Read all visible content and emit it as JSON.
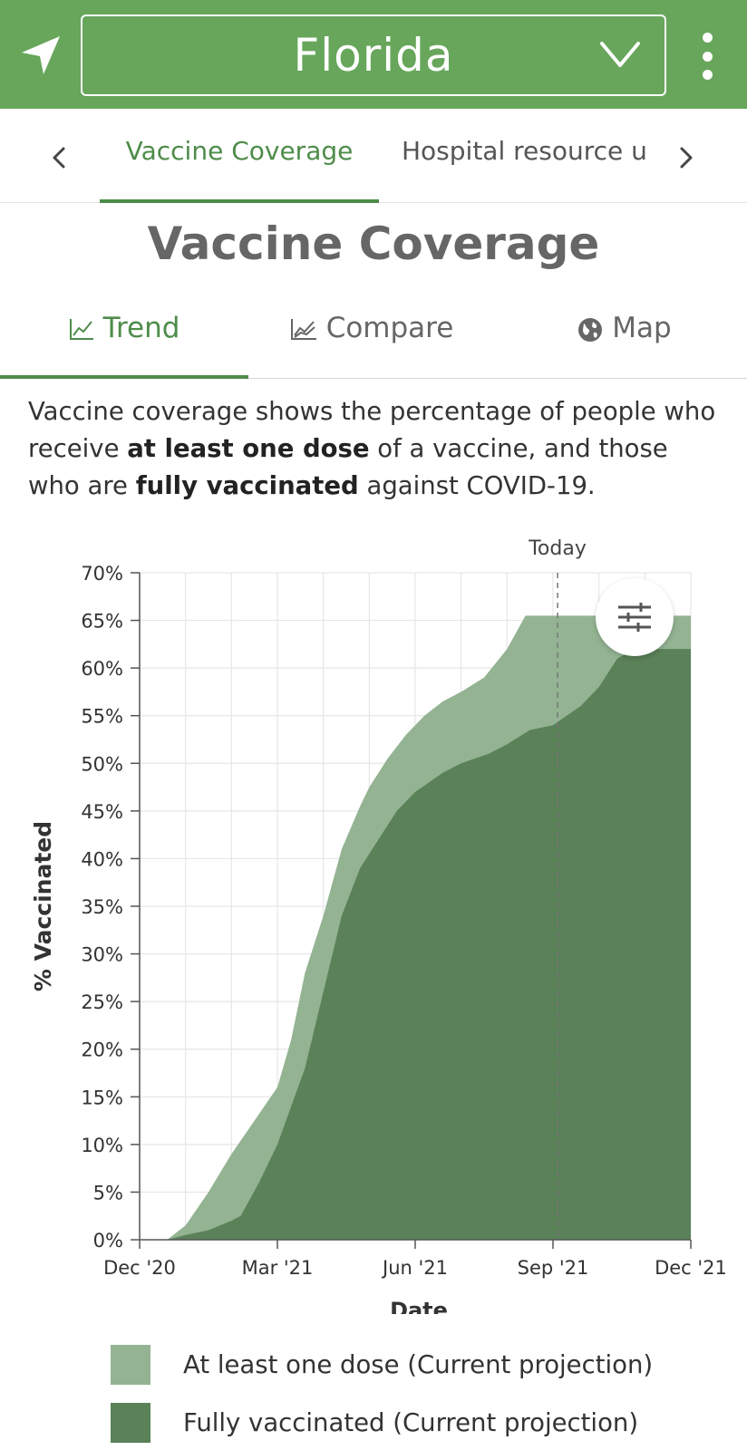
{
  "header": {
    "state": "Florida",
    "location_icon": "navigation-arrow-icon",
    "dropdown_icon": "chevron-down-icon",
    "menu_icon": "kebab-menu-icon"
  },
  "section_tabs": {
    "items": [
      {
        "label": "Vaccine Coverage",
        "active": true
      },
      {
        "label": "Hospital resource u",
        "active": false
      }
    ]
  },
  "page": {
    "title": "Vaccine Coverage",
    "description": {
      "p1": "Vaccine coverage shows the percentage of people who receive ",
      "b1": "at least one dose",
      "p2": " of a vaccine, and those who are ",
      "b2": "fully vaccinated",
      "p3": " against COVID-19."
    }
  },
  "view_tabs": {
    "trend": "Trend",
    "compare": "Compare",
    "map": "Map"
  },
  "colors": {
    "accent": "#4e8c4a",
    "header_bg": "#67a65b",
    "at_least_one": "#93b392",
    "fully": "#5a8158"
  },
  "chart_data": {
    "type": "area",
    "xlabel": "Date",
    "ylabel": "% Vaccinated",
    "x_ticks": [
      {
        "label": "Dec '20",
        "month": 0
      },
      {
        "label": "Mar '21",
        "month": 3
      },
      {
        "label": "Jun '21",
        "month": 6
      },
      {
        "label": "Sep '21",
        "month": 9
      },
      {
        "label": "Dec '21",
        "month": 12
      }
    ],
    "xlim": [
      0,
      12
    ],
    "ylim": [
      0,
      70
    ],
    "y_ticks": [
      "0%",
      "5%",
      "10%",
      "15%",
      "20%",
      "25%",
      "30%",
      "35%",
      "40%",
      "45%",
      "50%",
      "55%",
      "60%",
      "65%",
      "70%"
    ],
    "today_label": "Today",
    "today_month": 9.1,
    "grid": true,
    "series": [
      {
        "name": "At least one dose (Current projection)",
        "x": [
          0,
          0.6,
          1.0,
          1.5,
          2.0,
          2.5,
          3.0,
          3.3,
          3.6,
          4.0,
          4.4,
          4.8,
          5.0,
          5.4,
          5.8,
          6.2,
          6.6,
          7.0,
          7.5,
          8.0,
          8.4,
          8.8,
          12
        ],
        "values": [
          0,
          0,
          1.5,
          5,
          9,
          12.5,
          16,
          21,
          28,
          34,
          41,
          45.5,
          47.5,
          50.5,
          53,
          55,
          56.5,
          57.5,
          59,
          62,
          65.5,
          65.5,
          65.5
        ]
      },
      {
        "name": "Fully vaccinated (Current projection)",
        "x": [
          0,
          0.6,
          1.0,
          1.5,
          2.0,
          2.2,
          2.6,
          3.0,
          3.6,
          4.0,
          4.4,
          4.8,
          5.2,
          5.6,
          6.0,
          6.3,
          6.6,
          7.0,
          7.6,
          8.0,
          8.5,
          9.0,
          9.6,
          10.0,
          10.4,
          10.8,
          12
        ],
        "values": [
          0,
          0,
          0.5,
          1,
          2,
          2.5,
          6,
          10,
          18,
          26,
          34,
          39,
          42,
          45,
          47,
          48,
          49,
          50,
          51,
          52,
          53.5,
          54,
          56,
          58,
          61,
          62,
          62
        ]
      }
    ]
  }
}
